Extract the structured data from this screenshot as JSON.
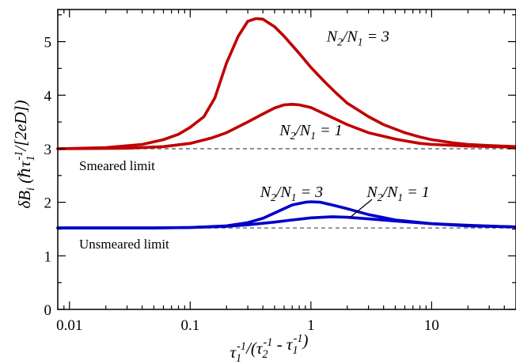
{
  "chart_data": {
    "type": "line",
    "xscale": "log",
    "xlim": [
      0.008,
      50
    ],
    "ylim": [
      0,
      5.6
    ],
    "xticks": [
      0.01,
      0.1,
      1,
      10
    ],
    "xtick_labels": [
      "0.01",
      "0.1",
      "1",
      "10"
    ],
    "yticks": [
      0,
      1,
      2,
      3,
      4,
      5
    ],
    "ytick_labels": [
      "0",
      "1",
      "2",
      "3",
      "4",
      "5"
    ],
    "xlabel_parts": [
      "τ",
      "1",
      "-1",
      "/(τ",
      "2",
      "-1",
      " - τ",
      "1",
      "-1",
      ")"
    ],
    "ylabel_parts": [
      "δB",
      "i",
      "  (ℏτ",
      "1",
      "-1",
      "/[2",
      "eD",
      "])"
    ],
    "grid": false,
    "reference_lines": [
      {
        "y": 3.0,
        "label": "Smeared limit",
        "color": "#777777"
      },
      {
        "y": 1.52,
        "label": "Unsmeared limit",
        "color": "#777777"
      }
    ],
    "series": [
      {
        "color": "#c00000",
        "x": [
          0.008,
          0.02,
          0.04,
          0.06,
          0.08,
          0.1,
          0.13,
          0.16,
          0.2,
          0.25,
          0.3,
          0.35,
          0.4,
          0.5,
          0.6,
          0.8,
          1.0,
          1.3,
          1.6,
          2.0,
          3.0,
          4.0,
          6.0,
          8.0,
          10.0,
          15.0,
          20.0,
          30.0,
          50.0
        ],
        "y": [
          3.0,
          3.02,
          3.08,
          3.17,
          3.27,
          3.4,
          3.6,
          3.95,
          4.6,
          5.1,
          5.38,
          5.43,
          5.42,
          5.28,
          5.1,
          4.78,
          4.52,
          4.25,
          4.05,
          3.85,
          3.6,
          3.45,
          3.3,
          3.22,
          3.17,
          3.11,
          3.08,
          3.06,
          3.04
        ]
      },
      {
        "color": "#c00000",
        "x": [
          0.008,
          0.03,
          0.06,
          0.1,
          0.15,
          0.2,
          0.3,
          0.4,
          0.5,
          0.6,
          0.7,
          0.8,
          1.0,
          1.3,
          2.0,
          3.0,
          5.0,
          8.0,
          10.0,
          20.0,
          50.0
        ],
        "y": [
          3.0,
          3.01,
          3.04,
          3.1,
          3.2,
          3.3,
          3.5,
          3.65,
          3.76,
          3.82,
          3.83,
          3.82,
          3.77,
          3.65,
          3.45,
          3.3,
          3.18,
          3.1,
          3.08,
          3.05,
          3.03
        ]
      },
      {
        "color": "#0000cc",
        "x": [
          0.008,
          0.05,
          0.1,
          0.2,
          0.3,
          0.4,
          0.5,
          0.7,
          0.9,
          1.0,
          1.2,
          1.5,
          2.0,
          3.0,
          5.0,
          10.0,
          20.0,
          50.0
        ],
        "y": [
          1.52,
          1.52,
          1.53,
          1.56,
          1.62,
          1.7,
          1.8,
          1.95,
          2.0,
          2.01,
          2.0,
          1.95,
          1.88,
          1.77,
          1.67,
          1.6,
          1.56,
          1.54
        ]
      },
      {
        "color": "#0000cc",
        "x": [
          0.008,
          0.05,
          0.1,
          0.2,
          0.3,
          0.5,
          0.7,
          1.0,
          1.5,
          2.0,
          3.0,
          5.0,
          10.0,
          20.0,
          50.0
        ],
        "y": [
          1.52,
          1.52,
          1.53,
          1.55,
          1.58,
          1.63,
          1.67,
          1.71,
          1.73,
          1.72,
          1.69,
          1.65,
          1.6,
          1.57,
          1.54
        ]
      }
    ],
    "annotations": [
      {
        "parts": [
          "N",
          "2",
          "/N",
          "1",
          " = 3"
        ],
        "x": 1.35,
        "y": 5.0
      },
      {
        "parts": [
          "N",
          "2",
          "/N",
          "1",
          " = 1"
        ],
        "x": 0.55,
        "y": 3.25
      },
      {
        "parts": [
          "N",
          "2",
          "/N",
          "1",
          " = 3"
        ],
        "x": 0.38,
        "y": 2.1
      },
      {
        "parts": [
          "N",
          "2",
          "/N",
          "1",
          " = 1"
        ],
        "x": 2.9,
        "y": 2.1
      }
    ]
  }
}
